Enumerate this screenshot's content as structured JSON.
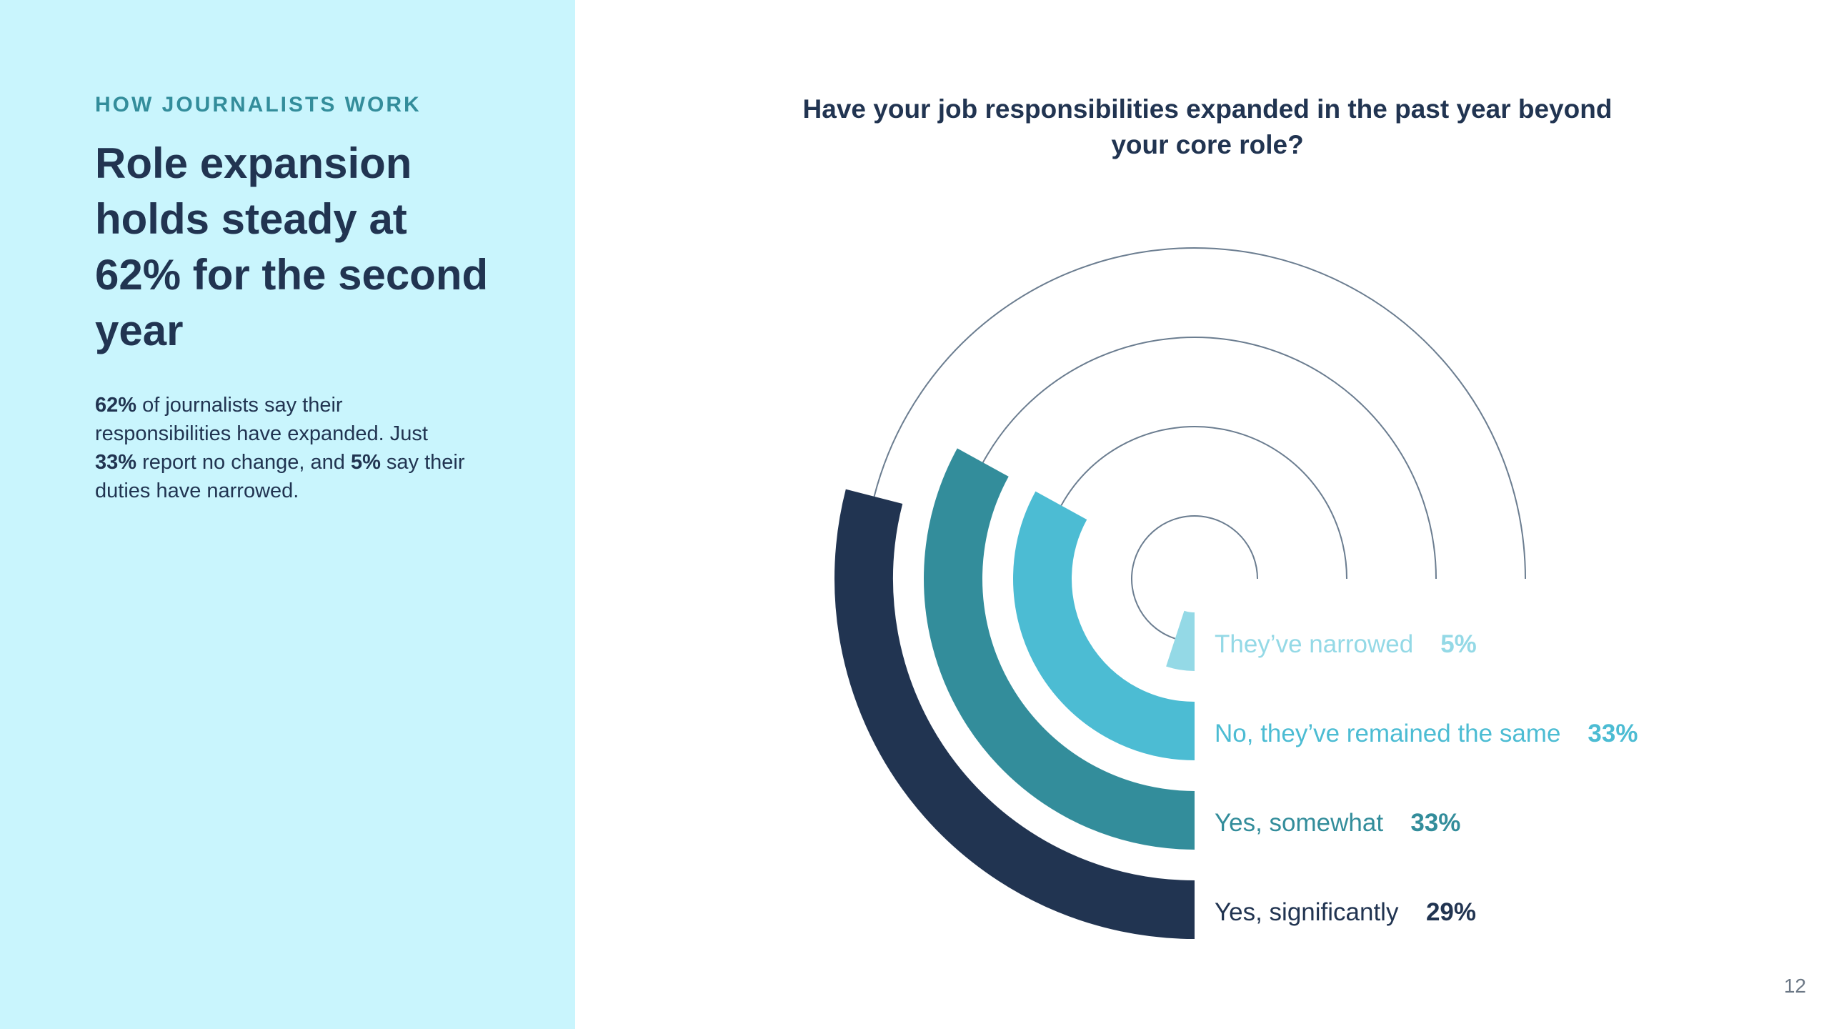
{
  "sidebar": {
    "eyebrow": "HOW JOURNALISTS WORK",
    "headline": "Role expansion holds steady at 62% for the second year",
    "body": {
      "p1_bold": "62%",
      "p1_text": " of journalists say their responsibilities have expanded. Just ",
      "p2_bold": "33%",
      "p2_text": " report no change, and ",
      "p3_bold": "5%",
      "p3_text": " say their duties have narrowed."
    }
  },
  "page_number": "12",
  "chart_data": {
    "type": "radial-bar",
    "title": "Have your job responsibilities expanded in the past year beyond your core role?",
    "unit": "%",
    "max": 100,
    "categories": [
      "They’ve narrowed",
      "No, they’ve remained the same",
      "Yes, somewhat",
      "Yes, significantly"
    ],
    "values": [
      5,
      33,
      33,
      29
    ],
    "value_labels": [
      "5%",
      "33%",
      "33%",
      "29%"
    ],
    "colors": [
      "#94d9e6",
      "#4cbcd3",
      "#338d9b",
      "#213451"
    ],
    "track_color": "#6b7d90"
  }
}
